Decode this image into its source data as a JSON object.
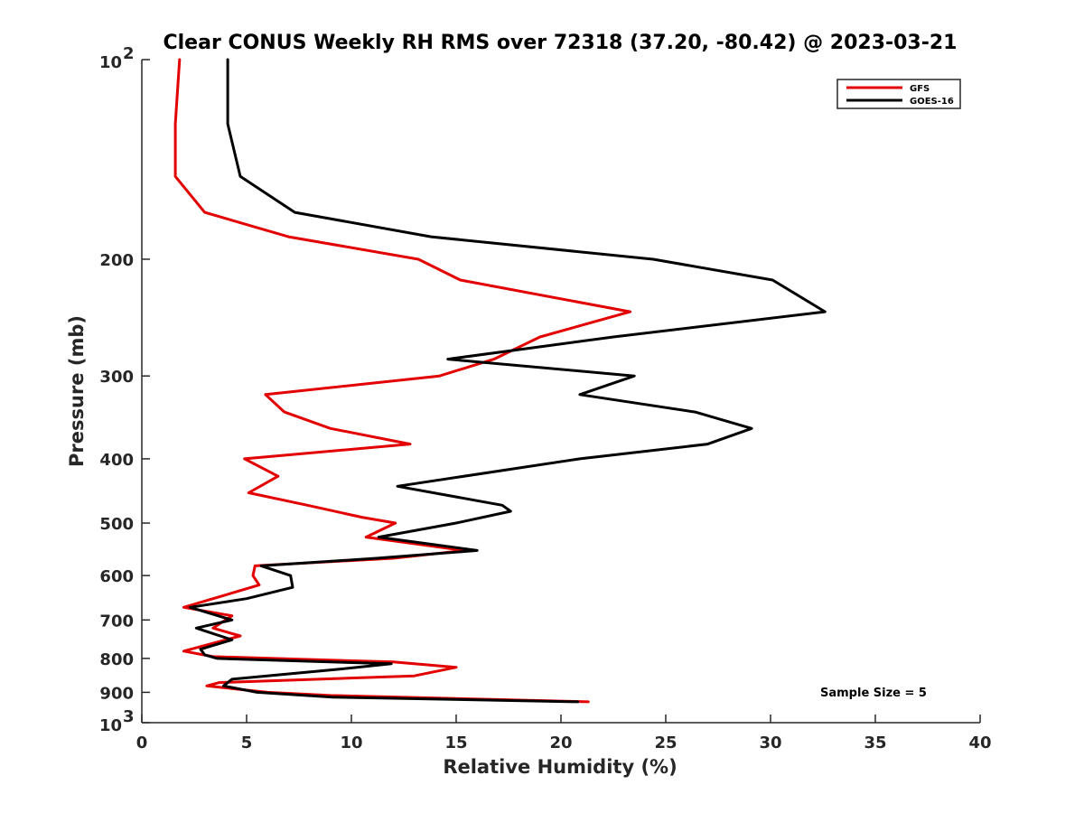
{
  "chart_data": {
    "type": "line",
    "title": "Clear CONUS Weekly RH RMS over 72318 (37.20, -80.42) @ 2023-03-21",
    "xlabel": "Relative Humidity (%)",
    "ylabel": "Pressure (mb)",
    "xlim": [
      0,
      40
    ],
    "ylim": [
      100,
      1000
    ],
    "y_scale": "log",
    "y_reversed": true,
    "x_ticks": [
      "0",
      "5",
      "10",
      "15",
      "20",
      "25",
      "30",
      "35",
      "40"
    ],
    "x_tick_values": [
      0,
      5,
      10,
      15,
      20,
      25,
      30,
      35,
      40
    ],
    "y_tick_values": [
      100,
      200,
      300,
      400,
      500,
      600,
      700,
      800,
      900,
      1000
    ],
    "y_ticks": [
      "",
      "200",
      "300",
      "400",
      "500",
      "600",
      "700",
      "800",
      "900",
      ""
    ],
    "y_tick_exp_base": "10",
    "y_tick_exp_top": "2",
    "y_tick_exp_bottom": "3",
    "legend_position": "top-right",
    "annotation": "Sample Size = 5",
    "series": [
      {
        "name": "GFS",
        "color": "#e30000",
        "points": [
          [
            1.8,
            100
          ],
          [
            1.6,
            125
          ],
          [
            1.6,
            150
          ],
          [
            3.0,
            170
          ],
          [
            7.0,
            185
          ],
          [
            13.2,
            200
          ],
          [
            15.2,
            215
          ],
          [
            23.3,
            240
          ],
          [
            19.0,
            262
          ],
          [
            16.8,
            283
          ],
          [
            14.2,
            300
          ],
          [
            5.9,
            320
          ],
          [
            6.8,
            340
          ],
          [
            9.0,
            360
          ],
          [
            12.8,
            380
          ],
          [
            4.9,
            400
          ],
          [
            6.5,
            425
          ],
          [
            5.1,
            450
          ],
          [
            7.9,
            470
          ],
          [
            10.5,
            490
          ],
          [
            12.1,
            500
          ],
          [
            10.7,
            525
          ],
          [
            15.4,
            550
          ],
          [
            12.0,
            565
          ],
          [
            5.4,
            580
          ],
          [
            5.3,
            600
          ],
          [
            5.6,
            620
          ],
          [
            2.0,
            670
          ],
          [
            4.3,
            690
          ],
          [
            3.4,
            720
          ],
          [
            4.7,
            740
          ],
          [
            2.0,
            780
          ],
          [
            3.4,
            795
          ],
          [
            12.0,
            810
          ],
          [
            15.0,
            825
          ],
          [
            13.0,
            850
          ],
          [
            3.7,
            870
          ],
          [
            3.1,
            880
          ],
          [
            6.0,
            900
          ],
          [
            9.0,
            910
          ],
          [
            21.3,
            930
          ]
        ]
      },
      {
        "name": "GOES-16",
        "color": "#000000",
        "points": [
          [
            4.1,
            100
          ],
          [
            4.1,
            125
          ],
          [
            4.7,
            150
          ],
          [
            7.3,
            170
          ],
          [
            13.8,
            185
          ],
          [
            24.4,
            200
          ],
          [
            30.1,
            215
          ],
          [
            32.6,
            240
          ],
          [
            22.5,
            262
          ],
          [
            14.6,
            283
          ],
          [
            23.5,
            300
          ],
          [
            20.9,
            320
          ],
          [
            26.4,
            340
          ],
          [
            29.1,
            360
          ],
          [
            27.0,
            380
          ],
          [
            20.9,
            400
          ],
          [
            12.2,
            440
          ],
          [
            17.2,
            470
          ],
          [
            17.6,
            480
          ],
          [
            15.0,
            500
          ],
          [
            11.3,
            525
          ],
          [
            16.0,
            550
          ],
          [
            11.2,
            565
          ],
          [
            5.7,
            580
          ],
          [
            7.1,
            600
          ],
          [
            7.2,
            625
          ],
          [
            5.0,
            650
          ],
          [
            2.3,
            670
          ],
          [
            4.3,
            700
          ],
          [
            2.6,
            720
          ],
          [
            4.3,
            750
          ],
          [
            2.8,
            775
          ],
          [
            3.0,
            790
          ],
          [
            3.6,
            800
          ],
          [
            11.9,
            815
          ],
          [
            9.5,
            830
          ],
          [
            4.3,
            860
          ],
          [
            4.0,
            875
          ],
          [
            3.9,
            880
          ],
          [
            5.5,
            900
          ],
          [
            9.1,
            915
          ],
          [
            20.8,
            930
          ]
        ]
      }
    ]
  }
}
